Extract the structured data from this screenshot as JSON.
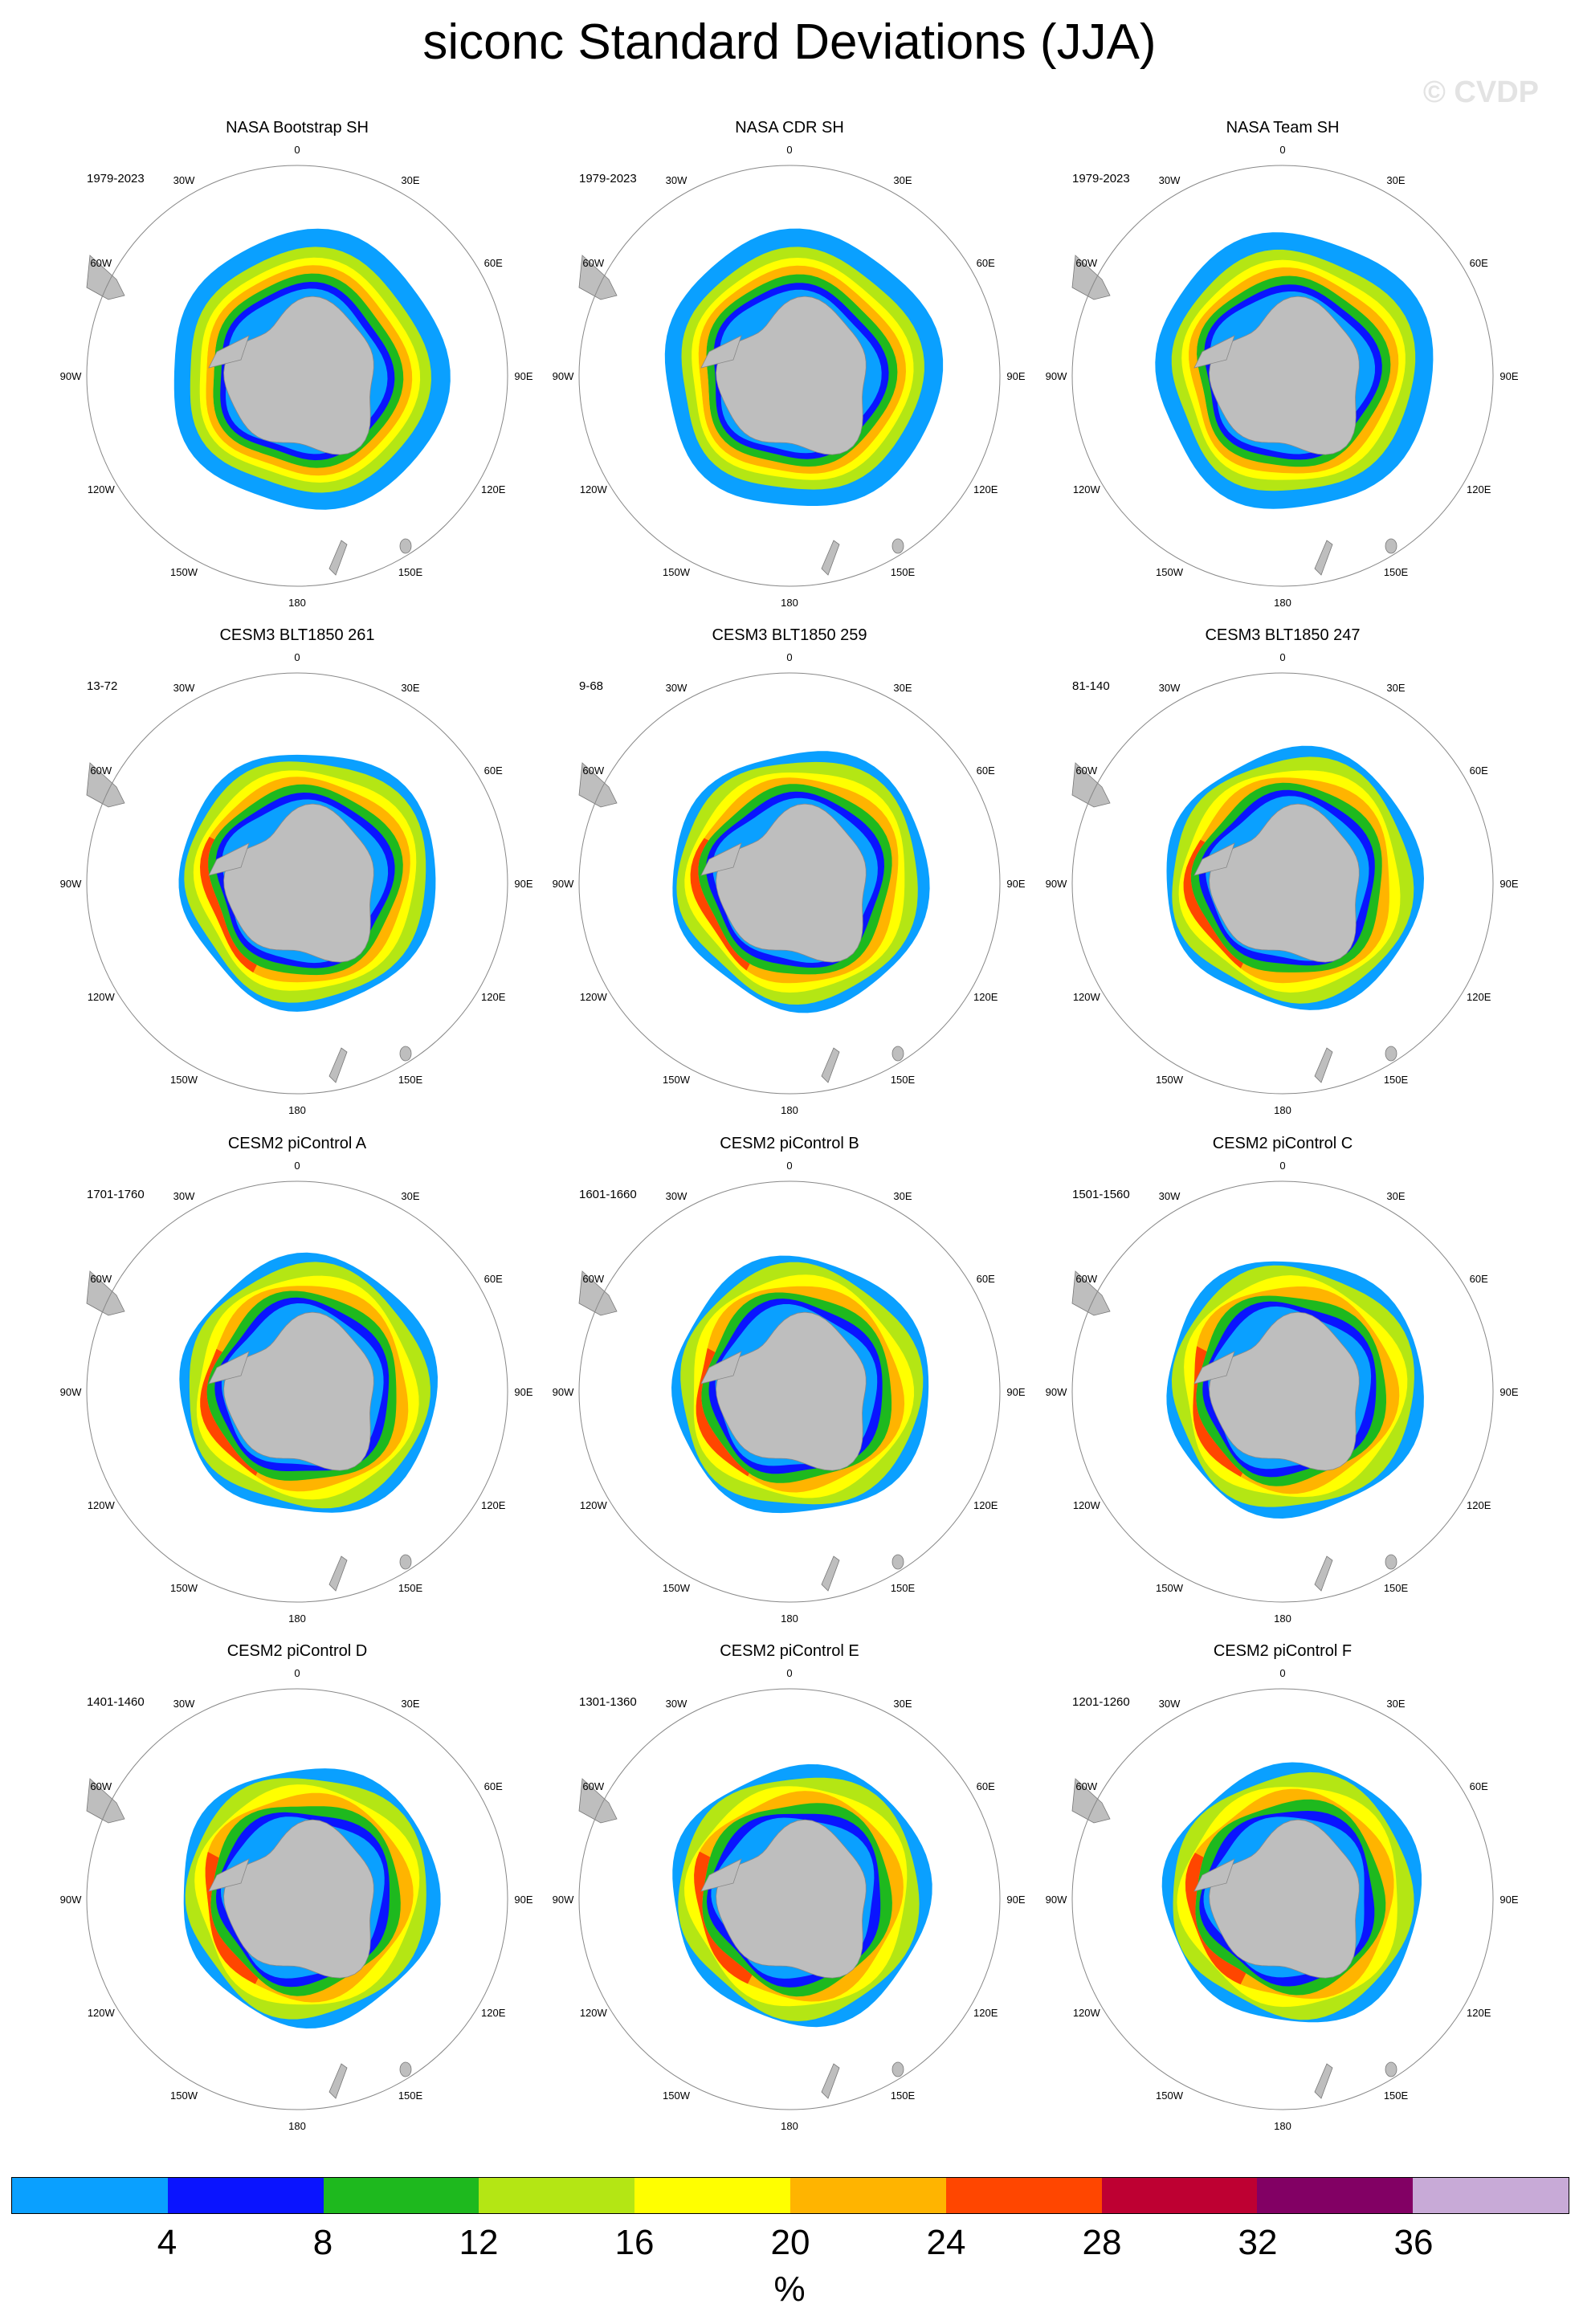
{
  "title": "siconc Standard Deviations (JJA)",
  "watermark": "© CVDP",
  "lon_labels": [
    "0",
    "30E",
    "60E",
    "90E",
    "120E",
    "150E",
    "180",
    "150W",
    "120W",
    "90W",
    "60W",
    "30W"
  ],
  "units": "%",
  "panels": [
    {
      "title": "NASA Bootstrap SH",
      "period": "1979-2023"
    },
    {
      "title": "NASA CDR SH",
      "period": "1979-2023"
    },
    {
      "title": "NASA Team SH",
      "period": "1979-2023"
    },
    {
      "title": "CESM3 BLT1850 261",
      "period": "13-72"
    },
    {
      "title": "CESM3 BLT1850 259",
      "period": "9-68"
    },
    {
      "title": "CESM3 BLT1850 247",
      "period": "81-140"
    },
    {
      "title": "CESM2 piControl A",
      "period": "1701-1760"
    },
    {
      "title": "CESM2 piControl B",
      "period": "1601-1660"
    },
    {
      "title": "CESM2 piControl C",
      "period": "1501-1560"
    },
    {
      "title": "CESM2 piControl D",
      "period": "1401-1460"
    },
    {
      "title": "CESM2 piControl E",
      "period": "1301-1360"
    },
    {
      "title": "CESM2 piControl F",
      "period": "1201-1260"
    }
  ],
  "colorbar": {
    "labels": [
      "4",
      "8",
      "12",
      "16",
      "20",
      "24",
      "28",
      "32",
      "36"
    ],
    "colors": [
      "#0aa0ff",
      "#0a14ff",
      "#1eb91e",
      "#b4e614",
      "#ffff00",
      "#ffb400",
      "#ff4600",
      "#be0032",
      "#820064",
      "#c8aad7"
    ]
  },
  "land_color": "#bebebe"
}
